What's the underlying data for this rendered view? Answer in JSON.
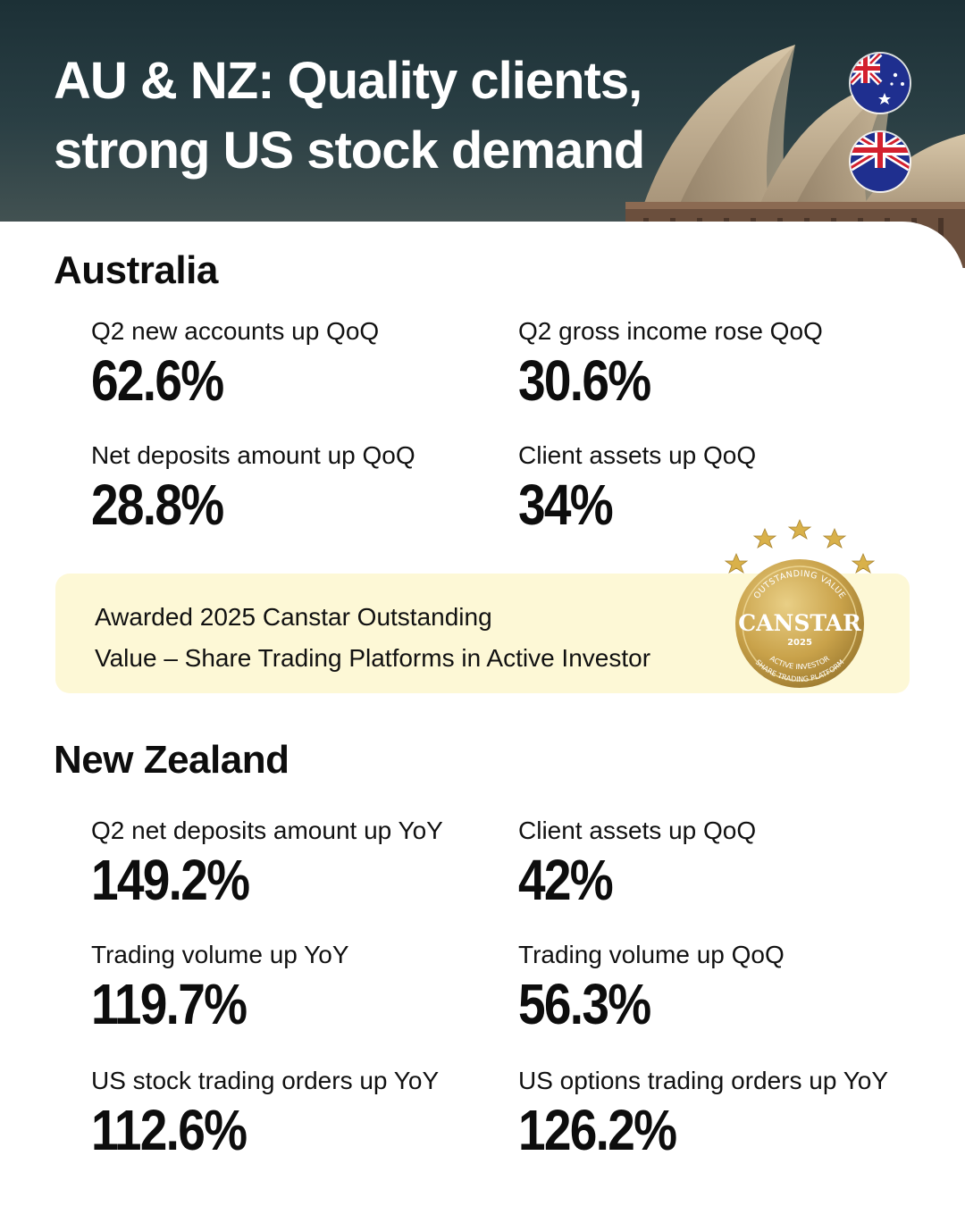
{
  "header": {
    "title": "AU & NZ: Quality clients,\nstrong US stock demand",
    "flags": [
      {
        "icon": "australia-flag-icon"
      },
      {
        "icon": "new-zealand-flag-icon"
      }
    ]
  },
  "australia": {
    "title": "Australia",
    "stats": [
      {
        "label": "Q2 new accounts up QoQ",
        "value": "62.6%"
      },
      {
        "label": "Q2 gross income rose QoQ",
        "value": "30.6%"
      },
      {
        "label": "Net deposits amount up QoQ",
        "value": "28.8%"
      },
      {
        "label": "Client assets up QoQ",
        "value": "34%"
      }
    ]
  },
  "award": {
    "line1": "Awarded 2025 Canstar Outstanding",
    "line2": "Value – Share Trading Platforms in Active Investor",
    "badge": {
      "top_text": "OUTSTANDING VALUE",
      "brand": "CANSTAR",
      "year": "2025",
      "bottom_line1": "ACTIVE INVESTOR",
      "bottom_line2": "SHARE TRADING PLATFORM",
      "stars": 5
    }
  },
  "new_zealand": {
    "title": "New Zealand",
    "stats": [
      {
        "label": "Q2 net deposits amount up YoY",
        "value": "149.2%"
      },
      {
        "label": "Client assets up QoQ",
        "value": "42%"
      },
      {
        "label": "Trading volume up YoY",
        "value": "119.7%"
      },
      {
        "label": "Trading volume up QoQ",
        "value": "56.3%"
      },
      {
        "label": "US stock trading orders up YoY",
        "value": "112.6%"
      },
      {
        "label": "US options trading orders up YoY",
        "value": "126.2%"
      }
    ]
  },
  "colors": {
    "header_dark": "#1c3036",
    "award_bg": "#fdf8d6",
    "badge_gold": "#c9a24a",
    "text": "#0d0d0d"
  }
}
